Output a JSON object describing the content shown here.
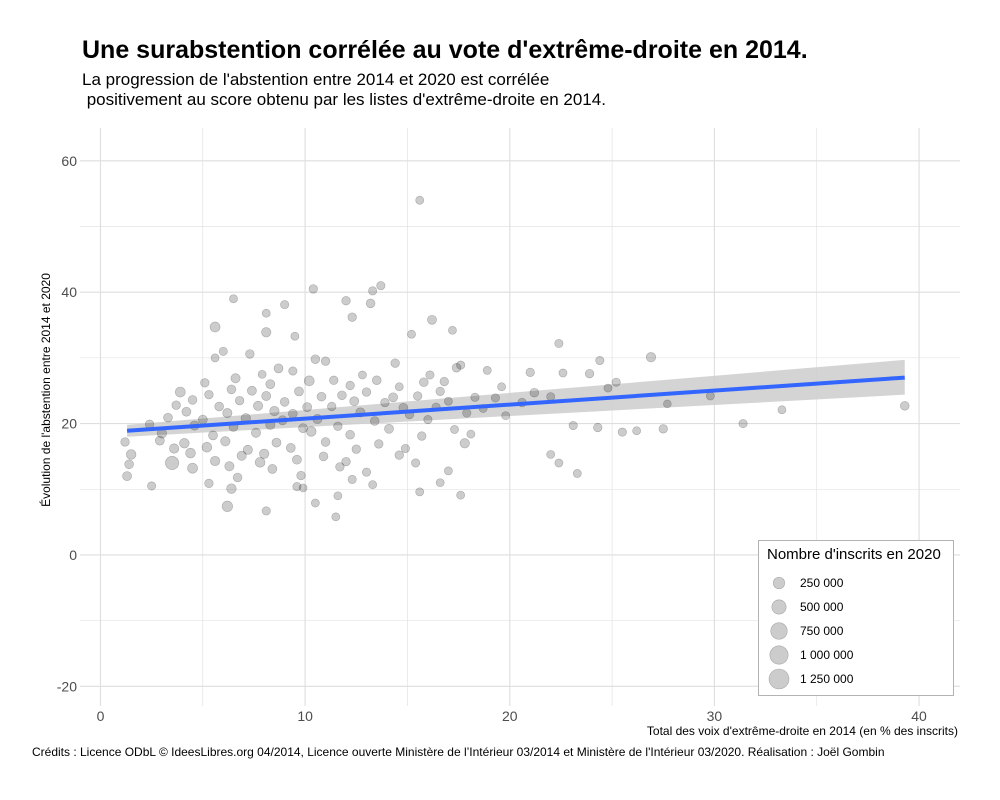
{
  "title": "Une surabstention corrélée au vote d'extrême-droite en 2014.",
  "subtitle": "La progression de l'abstention entre 2014 et 2020 est corrélée\n positivement au score obtenu par les listes d'extrême-droite en 2014.",
  "credits": "Crédits : Licence ODbL © IdeesLibres.org 04/2014, Licence ouverte Ministère de l’Intérieur 03/2014 et Ministère de l'Intérieur 03/2020. Réalisation : Joël Gombin",
  "colors": {
    "points": "#000000",
    "trend": "#3366ff",
    "ribbon": "#cccccc",
    "grid": "#dedede"
  },
  "chart_data": {
    "type": "scatter",
    "xlabel": "Total des voix d'extrême-droite en 2014 (en % des inscrits)",
    "ylabel": "Évolution de l'abstention entre 2014 et 2020",
    "xlim": [
      -1,
      42
    ],
    "ylim": [
      -23,
      65
    ],
    "x_ticks": [
      0,
      10,
      20,
      30,
      40
    ],
    "y_ticks": [
      -20,
      0,
      20,
      40,
      60
    ],
    "grid": true,
    "trend": {
      "x": [
        1.3,
        39.3
      ],
      "y": [
        18.9,
        27.0
      ],
      "ribbon_lower": [
        18.0,
        24.4
      ],
      "ribbon_upper": [
        19.8,
        29.7
      ]
    },
    "legend": {
      "title": "Nombre d'inscrits en 2020",
      "position": "bottom-right",
      "items": [
        {
          "label": "250 000",
          "value": 250000
        },
        {
          "label": "500 000",
          "value": 500000
        },
        {
          "label": "750 000",
          "value": 750000
        },
        {
          "label": "1 000 000",
          "value": 1000000
        },
        {
          "label": "1 250 000",
          "value": 1250000
        }
      ]
    },
    "points": [
      {
        "x": 15.6,
        "y": 54.0,
        "s": 60000
      },
      {
        "x": 10.4,
        "y": 40.5,
        "s": 80000
      },
      {
        "x": 13.7,
        "y": 41.0,
        "s": 70000
      },
      {
        "x": 13.3,
        "y": 40.2,
        "s": 70000
      },
      {
        "x": 6.5,
        "y": 39.0,
        "s": 60000
      },
      {
        "x": 12.0,
        "y": 38.7,
        "s": 80000
      },
      {
        "x": 13.2,
        "y": 38.3,
        "s": 90000
      },
      {
        "x": 9.0,
        "y": 38.1,
        "s": 70000
      },
      {
        "x": 8.1,
        "y": 36.8,
        "s": 60000
      },
      {
        "x": 12.3,
        "y": 36.2,
        "s": 80000
      },
      {
        "x": 16.2,
        "y": 35.8,
        "s": 100000
      },
      {
        "x": 5.6,
        "y": 34.7,
        "s": 150000
      },
      {
        "x": 17.2,
        "y": 34.2,
        "s": 60000
      },
      {
        "x": 15.2,
        "y": 33.6,
        "s": 60000
      },
      {
        "x": 8.1,
        "y": 33.9,
        "s": 120000
      },
      {
        "x": 9.5,
        "y": 33.3,
        "s": 60000
      },
      {
        "x": 22.4,
        "y": 32.2,
        "s": 70000
      },
      {
        "x": 6.0,
        "y": 31.0,
        "s": 70000
      },
      {
        "x": 7.3,
        "y": 30.6,
        "s": 80000
      },
      {
        "x": 26.9,
        "y": 30.1,
        "s": 120000
      },
      {
        "x": 5.6,
        "y": 30.0,
        "s": 60000
      },
      {
        "x": 24.4,
        "y": 29.6,
        "s": 70000
      },
      {
        "x": 10.5,
        "y": 29.8,
        "s": 90000
      },
      {
        "x": 11.0,
        "y": 29.5,
        "s": 80000
      },
      {
        "x": 14.4,
        "y": 29.2,
        "s": 80000
      },
      {
        "x": 17.6,
        "y": 28.9,
        "s": 70000
      },
      {
        "x": 17.4,
        "y": 28.5,
        "s": 90000
      },
      {
        "x": 8.7,
        "y": 28.4,
        "s": 100000
      },
      {
        "x": 9.4,
        "y": 28.0,
        "s": 70000
      },
      {
        "x": 18.9,
        "y": 28.1,
        "s": 60000
      },
      {
        "x": 21.0,
        "y": 27.8,
        "s": 80000
      },
      {
        "x": 22.6,
        "y": 27.7,
        "s": 60000
      },
      {
        "x": 23.9,
        "y": 27.6,
        "s": 80000
      },
      {
        "x": 7.9,
        "y": 27.5,
        "s": 60000
      },
      {
        "x": 12.8,
        "y": 27.4,
        "s": 60000
      },
      {
        "x": 16.1,
        "y": 27.4,
        "s": 70000
      },
      {
        "x": 6.6,
        "y": 26.9,
        "s": 110000
      },
      {
        "x": 10.2,
        "y": 26.5,
        "s": 150000
      },
      {
        "x": 11.4,
        "y": 26.6,
        "s": 80000
      },
      {
        "x": 13.5,
        "y": 26.6,
        "s": 90000
      },
      {
        "x": 15.8,
        "y": 26.3,
        "s": 90000
      },
      {
        "x": 16.8,
        "y": 26.4,
        "s": 80000
      },
      {
        "x": 25.2,
        "y": 26.3,
        "s": 70000
      },
      {
        "x": 5.1,
        "y": 26.2,
        "s": 80000
      },
      {
        "x": 8.3,
        "y": 26.0,
        "s": 100000
      },
      {
        "x": 12.2,
        "y": 25.8,
        "s": 80000
      },
      {
        "x": 14.6,
        "y": 25.6,
        "s": 60000
      },
      {
        "x": 19.6,
        "y": 25.6,
        "s": 60000
      },
      {
        "x": 24.8,
        "y": 25.4,
        "s": 60000
      },
      {
        "x": 6.4,
        "y": 25.2,
        "s": 90000
      },
      {
        "x": 7.4,
        "y": 25.0,
        "s": 100000
      },
      {
        "x": 9.7,
        "y": 24.9,
        "s": 100000
      },
      {
        "x": 13.0,
        "y": 24.8,
        "s": 80000
      },
      {
        "x": 16.6,
        "y": 24.9,
        "s": 80000
      },
      {
        "x": 21.2,
        "y": 24.7,
        "s": 90000
      },
      {
        "x": 3.9,
        "y": 24.8,
        "s": 150000
      },
      {
        "x": 5.3,
        "y": 24.4,
        "s": 80000
      },
      {
        "x": 8.1,
        "y": 24.2,
        "s": 100000
      },
      {
        "x": 10.8,
        "y": 24.1,
        "s": 90000
      },
      {
        "x": 11.8,
        "y": 24.3,
        "s": 90000
      },
      {
        "x": 14.3,
        "y": 24.0,
        "s": 100000
      },
      {
        "x": 15.5,
        "y": 24.2,
        "s": 80000
      },
      {
        "x": 18.3,
        "y": 24.0,
        "s": 70000
      },
      {
        "x": 19.3,
        "y": 23.9,
        "s": 70000
      },
      {
        "x": 22.0,
        "y": 24.1,
        "s": 60000
      },
      {
        "x": 27.7,
        "y": 23.0,
        "s": 50000
      },
      {
        "x": 29.8,
        "y": 24.2,
        "s": 60000
      },
      {
        "x": 4.5,
        "y": 23.6,
        "s": 90000
      },
      {
        "x": 6.8,
        "y": 23.5,
        "s": 80000
      },
      {
        "x": 9.0,
        "y": 23.3,
        "s": 90000
      },
      {
        "x": 12.4,
        "y": 23.4,
        "s": 100000
      },
      {
        "x": 13.9,
        "y": 23.2,
        "s": 80000
      },
      {
        "x": 17.0,
        "y": 23.4,
        "s": 60000
      },
      {
        "x": 20.6,
        "y": 23.2,
        "s": 80000
      },
      {
        "x": 3.7,
        "y": 22.8,
        "s": 80000
      },
      {
        "x": 5.8,
        "y": 22.6,
        "s": 90000
      },
      {
        "x": 7.7,
        "y": 22.7,
        "s": 110000
      },
      {
        "x": 10.1,
        "y": 22.5,
        "s": 100000
      },
      {
        "x": 11.3,
        "y": 22.6,
        "s": 80000
      },
      {
        "x": 14.8,
        "y": 22.4,
        "s": 100000
      },
      {
        "x": 16.4,
        "y": 22.5,
        "s": 70000
      },
      {
        "x": 18.7,
        "y": 22.3,
        "s": 60000
      },
      {
        "x": 33.3,
        "y": 22.1,
        "s": 60000
      },
      {
        "x": 4.2,
        "y": 21.8,
        "s": 100000
      },
      {
        "x": 6.2,
        "y": 21.6,
        "s": 110000
      },
      {
        "x": 8.5,
        "y": 21.9,
        "s": 120000
      },
      {
        "x": 9.4,
        "y": 21.5,
        "s": 90000
      },
      {
        "x": 12.7,
        "y": 21.7,
        "s": 110000
      },
      {
        "x": 15.1,
        "y": 21.4,
        "s": 90000
      },
      {
        "x": 17.9,
        "y": 21.6,
        "s": 70000
      },
      {
        "x": 19.8,
        "y": 21.2,
        "s": 60000
      },
      {
        "x": 3.3,
        "y": 20.9,
        "s": 90000
      },
      {
        "x": 5.0,
        "y": 20.6,
        "s": 100000
      },
      {
        "x": 7.1,
        "y": 20.8,
        "s": 120000
      },
      {
        "x": 8.9,
        "y": 20.5,
        "s": 100000
      },
      {
        "x": 10.6,
        "y": 20.7,
        "s": 110000
      },
      {
        "x": 13.4,
        "y": 20.4,
        "s": 90000
      },
      {
        "x": 16.0,
        "y": 20.6,
        "s": 70000
      },
      {
        "x": 23.1,
        "y": 19.7,
        "s": 70000
      },
      {
        "x": 24.3,
        "y": 19.4,
        "s": 80000
      },
      {
        "x": 31.4,
        "y": 20.0,
        "s": 70000
      },
      {
        "x": 2.4,
        "y": 19.9,
        "s": 80000
      },
      {
        "x": 4.6,
        "y": 19.7,
        "s": 110000
      },
      {
        "x": 6.5,
        "y": 19.5,
        "s": 100000
      },
      {
        "x": 8.3,
        "y": 19.8,
        "s": 110000
      },
      {
        "x": 9.9,
        "y": 19.3,
        "s": 100000
      },
      {
        "x": 11.6,
        "y": 19.6,
        "s": 80000
      },
      {
        "x": 14.1,
        "y": 19.2,
        "s": 100000
      },
      {
        "x": 17.3,
        "y": 19.1,
        "s": 60000
      },
      {
        "x": 26.2,
        "y": 18.9,
        "s": 60000
      },
      {
        "x": 25.5,
        "y": 18.7,
        "s": 70000
      },
      {
        "x": 27.5,
        "y": 19.2,
        "s": 80000
      },
      {
        "x": 3.0,
        "y": 18.5,
        "s": 120000
      },
      {
        "x": 5.5,
        "y": 18.2,
        "s": 100000
      },
      {
        "x": 7.6,
        "y": 18.6,
        "s": 110000
      },
      {
        "x": 10.3,
        "y": 18.8,
        "s": 130000
      },
      {
        "x": 12.2,
        "y": 18.3,
        "s": 90000
      },
      {
        "x": 15.7,
        "y": 18.1,
        "s": 80000
      },
      {
        "x": 18.1,
        "y": 18.4,
        "s": 60000
      },
      {
        "x": 1.2,
        "y": 17.2,
        "s": 80000
      },
      {
        "x": 2.9,
        "y": 17.4,
        "s": 100000
      },
      {
        "x": 4.1,
        "y": 17.0,
        "s": 130000
      },
      {
        "x": 6.1,
        "y": 17.3,
        "s": 120000
      },
      {
        "x": 8.6,
        "y": 17.1,
        "s": 100000
      },
      {
        "x": 11.0,
        "y": 17.2,
        "s": 90000
      },
      {
        "x": 13.6,
        "y": 16.9,
        "s": 80000
      },
      {
        "x": 17.8,
        "y": 17.0,
        "s": 120000
      },
      {
        "x": 3.6,
        "y": 16.2,
        "s": 120000
      },
      {
        "x": 5.2,
        "y": 16.4,
        "s": 140000
      },
      {
        "x": 7.2,
        "y": 16.0,
        "s": 110000
      },
      {
        "x": 9.3,
        "y": 16.3,
        "s": 100000
      },
      {
        "x": 12.5,
        "y": 16.1,
        "s": 80000
      },
      {
        "x": 14.9,
        "y": 16.2,
        "s": 70000
      },
      {
        "x": 1.5,
        "y": 15.3,
        "s": 130000
      },
      {
        "x": 4.4,
        "y": 15.5,
        "s": 140000
      },
      {
        "x": 6.9,
        "y": 15.1,
        "s": 110000
      },
      {
        "x": 8.0,
        "y": 15.4,
        "s": 120000
      },
      {
        "x": 10.9,
        "y": 15.0,
        "s": 90000
      },
      {
        "x": 14.6,
        "y": 15.2,
        "s": 80000
      },
      {
        "x": 22.0,
        "y": 15.3,
        "s": 60000
      },
      {
        "x": 3.5,
        "y": 14.0,
        "s": 400000
      },
      {
        "x": 5.6,
        "y": 14.3,
        "s": 120000
      },
      {
        "x": 7.8,
        "y": 14.1,
        "s": 140000
      },
      {
        "x": 9.6,
        "y": 14.5,
        "s": 100000
      },
      {
        "x": 12.0,
        "y": 14.2,
        "s": 80000
      },
      {
        "x": 15.4,
        "y": 14.0,
        "s": 70000
      },
      {
        "x": 22.4,
        "y": 14.0,
        "s": 60000
      },
      {
        "x": 1.4,
        "y": 13.8,
        "s": 90000
      },
      {
        "x": 4.5,
        "y": 13.2,
        "s": 150000
      },
      {
        "x": 6.3,
        "y": 13.5,
        "s": 110000
      },
      {
        "x": 8.4,
        "y": 13.1,
        "s": 100000
      },
      {
        "x": 11.7,
        "y": 13.4,
        "s": 80000
      },
      {
        "x": 13.0,
        "y": 12.6,
        "s": 70000
      },
      {
        "x": 17.0,
        "y": 12.8,
        "s": 60000
      },
      {
        "x": 23.3,
        "y": 12.4,
        "s": 60000
      },
      {
        "x": 1.3,
        "y": 12.0,
        "s": 100000
      },
      {
        "x": 6.7,
        "y": 11.8,
        "s": 90000
      },
      {
        "x": 9.8,
        "y": 12.1,
        "s": 80000
      },
      {
        "x": 12.3,
        "y": 11.5,
        "s": 70000
      },
      {
        "x": 16.6,
        "y": 11.0,
        "s": 60000
      },
      {
        "x": 5.3,
        "y": 10.9,
        "s": 80000
      },
      {
        "x": 13.3,
        "y": 10.7,
        "s": 60000
      },
      {
        "x": 2.5,
        "y": 10.5,
        "s": 70000
      },
      {
        "x": 6.4,
        "y": 10.1,
        "s": 130000
      },
      {
        "x": 9.6,
        "y": 10.4,
        "s": 70000
      },
      {
        "x": 9.9,
        "y": 10.2,
        "s": 60000
      },
      {
        "x": 15.6,
        "y": 9.6,
        "s": 60000
      },
      {
        "x": 17.6,
        "y": 9.1,
        "s": 60000
      },
      {
        "x": 11.6,
        "y": 9.0,
        "s": 60000
      },
      {
        "x": 10.5,
        "y": 7.9,
        "s": 60000
      },
      {
        "x": 6.2,
        "y": 7.4,
        "s": 180000
      },
      {
        "x": 8.1,
        "y": 6.7,
        "s": 70000
      },
      {
        "x": 11.5,
        "y": 5.8,
        "s": 60000
      },
      {
        "x": 39.3,
        "y": 22.7,
        "s": 90000
      }
    ]
  }
}
